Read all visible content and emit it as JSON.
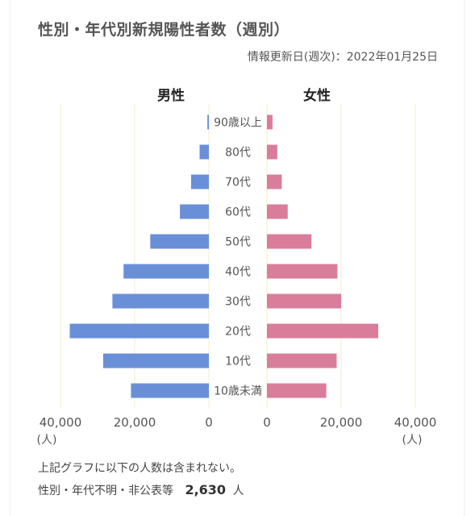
{
  "title": "性別・年代別新規陽性者数（週別）",
  "updated": "情報更新日(週次)：2022年01月25日",
  "chart_data": {
    "type": "bar",
    "orientation": "horizontal",
    "layout": "population-pyramid",
    "categories": [
      "90歳以上",
      "80代",
      "70代",
      "60代",
      "50代",
      "40代",
      "30代",
      "20代",
      "10代",
      "10歳未満"
    ],
    "series": [
      {
        "name": "男性",
        "side": "left",
        "color": "#6a8fd9",
        "values": [
          400,
          2500,
          4800,
          7800,
          15800,
          23000,
          26000,
          37500,
          28500,
          21000
        ]
      },
      {
        "name": "女性",
        "side": "right",
        "color": "#d97d9b",
        "values": [
          1500,
          2800,
          4000,
          5600,
          12000,
          19000,
          20000,
          30000,
          18800,
          16000
        ]
      }
    ],
    "x_ticks_left": [
      "40,000",
      "20,000",
      "0"
    ],
    "x_ticks_right": [
      "0",
      "20,000",
      "40,000"
    ],
    "unit_label": "(人)",
    "xlim": [
      0,
      40000
    ],
    "grid": true
  },
  "footnote": "上記グラフに以下の人数は含まれない。",
  "unknown": {
    "label": "性別・年代不明・非公表等",
    "value": "2,630",
    "unit": "人"
  }
}
